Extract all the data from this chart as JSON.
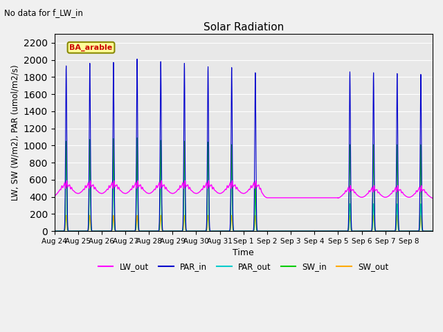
{
  "title": "Solar Radiation",
  "suptitle": "No data for f_LW_in",
  "xlabel": "Time",
  "ylabel": "LW, SW (W/m2), PAR (umol/m2/s)",
  "legend_label": "BA_arable",
  "ylim": [
    0,
    2300
  ],
  "yticks": [
    0,
    200,
    400,
    600,
    800,
    1000,
    1200,
    1400,
    1600,
    1800,
    2000,
    2200
  ],
  "date_labels": [
    "Aug 24",
    "Aug 25",
    "Aug 26",
    "Aug 27",
    "Aug 28",
    "Aug 29",
    "Aug 30",
    "Aug 31",
    "Sep 1",
    "Sep 2",
    "Sep 3",
    "Sep 4",
    "Sep 5",
    "Sep 6",
    "Sep 7",
    "Sep 8"
  ],
  "n_days": 16,
  "colors": {
    "LW_out": "#ff00ff",
    "PAR_in": "#0000cc",
    "PAR_out": "#00cccc",
    "SW_in": "#00cc00",
    "SW_out": "#ffaa00"
  },
  "background_color": "#e8e8e8",
  "fig_color": "#f0f0f0",
  "grid_color": "#ffffff"
}
